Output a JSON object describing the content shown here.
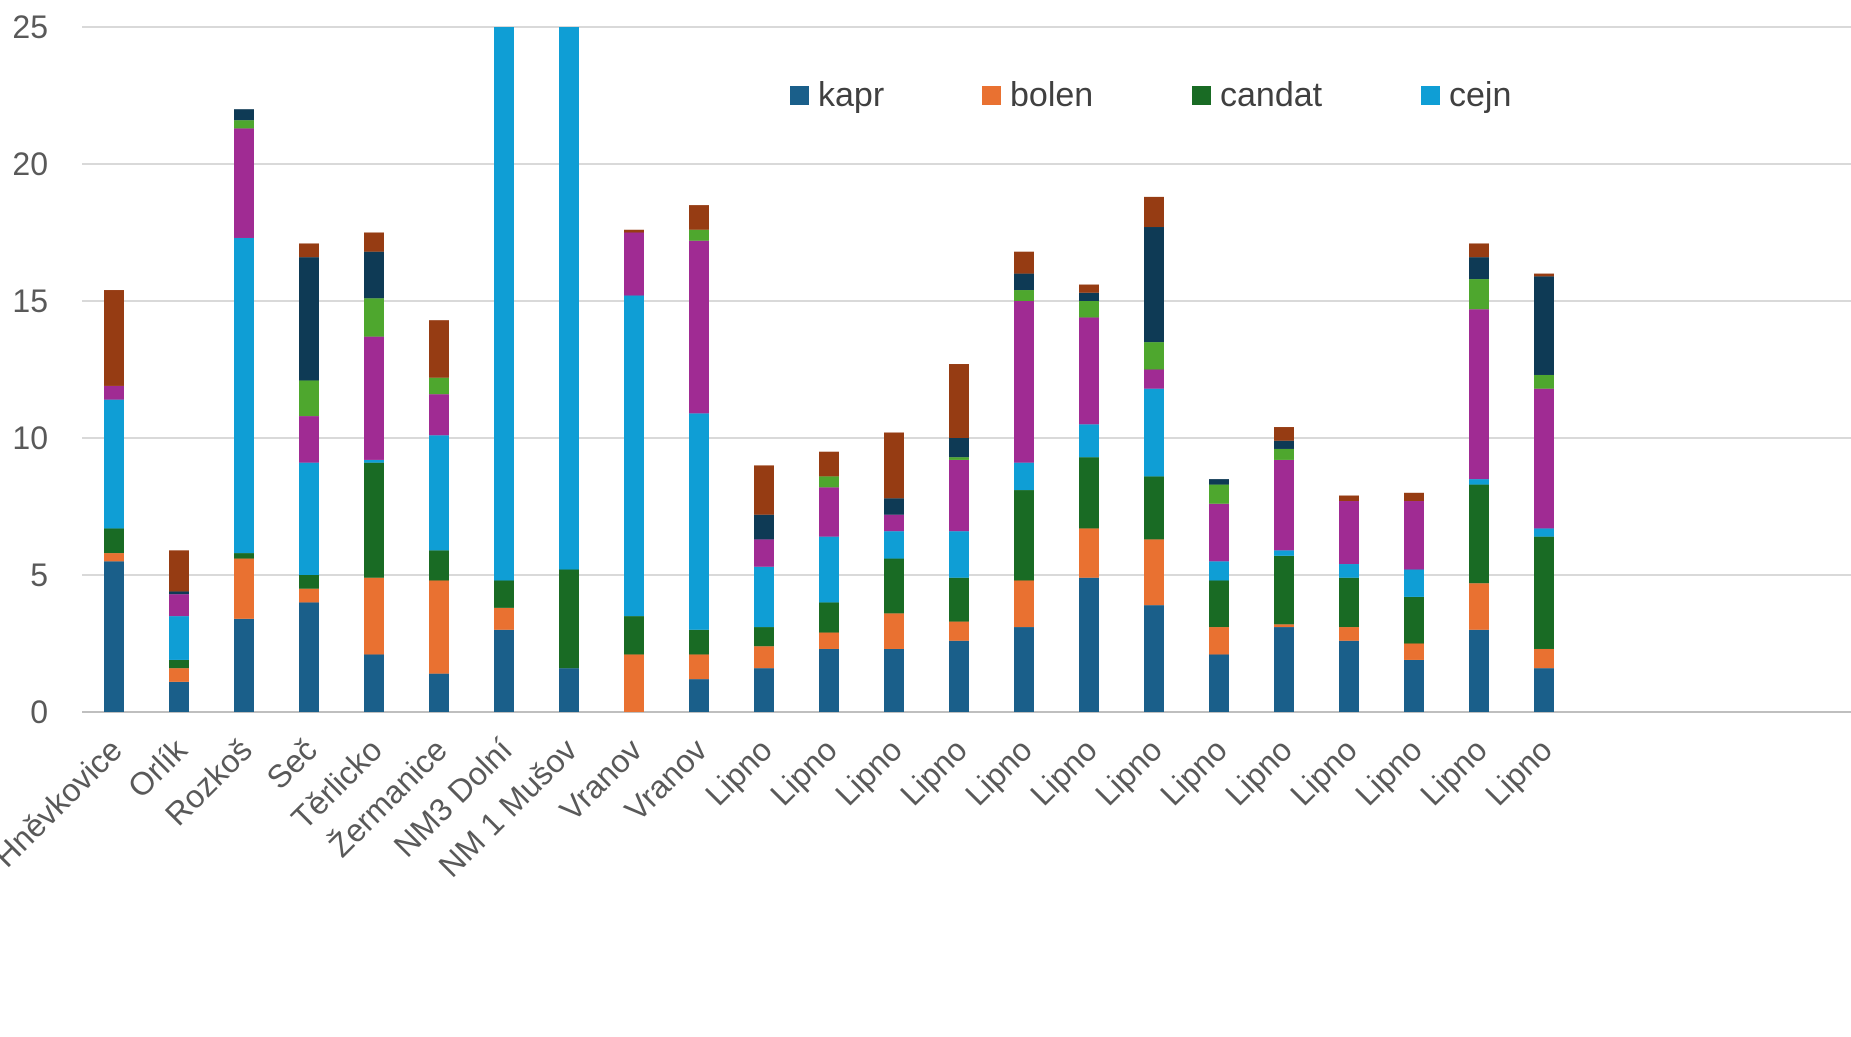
{
  "chart_data": {
    "type": "bar",
    "stacked": true,
    "ylim": [
      0,
      25
    ],
    "yticks": [
      0,
      5,
      10,
      15,
      20,
      25
    ],
    "grid": true,
    "legend_position": "top-right",
    "categories": [
      "Hněvkovice",
      "Orlík",
      "Rozkoš",
      "Seč",
      "Těrlicko",
      "Žermanice",
      "NM3 Dolní",
      "NM 1 Mušov",
      "Vranov",
      "Vranov",
      "Lipno",
      "Lipno",
      "Lipno",
      "Lipno",
      "Lipno",
      "Lipno",
      "Lipno",
      "Lipno",
      "Lipno",
      "Lipno",
      "Lipno",
      "Lipno",
      "Lipno"
    ],
    "series": [
      {
        "name": "kapr",
        "color": "#1a5f8a",
        "legend": true,
        "values": [
          5.5,
          1.1,
          3.4,
          4.0,
          2.1,
          1.4,
          3.0,
          1.6,
          0.0,
          1.2,
          1.6,
          2.3,
          2.3,
          2.6,
          3.1,
          4.9,
          3.9,
          2.1,
          3.1,
          2.6,
          1.9,
          3.0,
          1.6
        ]
      },
      {
        "name": "bolen",
        "color": "#e97131",
        "legend": true,
        "values": [
          0.3,
          0.5,
          2.2,
          0.5,
          2.8,
          3.4,
          0.8,
          0.0,
          2.1,
          0.9,
          0.8,
          0.6,
          1.3,
          0.7,
          1.7,
          1.8,
          2.4,
          1.0,
          0.1,
          0.5,
          0.6,
          1.7,
          0.7
        ]
      },
      {
        "name": "candat",
        "color": "#196b24",
        "legend": true,
        "values": [
          0.9,
          0.3,
          0.2,
          0.5,
          4.2,
          1.1,
          1.0,
          3.6,
          1.4,
          0.9,
          0.7,
          1.1,
          2.0,
          1.6,
          3.3,
          2.6,
          2.3,
          1.7,
          2.5,
          1.8,
          1.7,
          3.6,
          4.1
        ]
      },
      {
        "name": "cejn",
        "color": "#0f9ed5",
        "legend": true,
        "values": [
          4.7,
          1.6,
          11.5,
          4.1,
          0.1,
          4.2,
          20.2,
          19.8,
          11.7,
          7.9,
          2.2,
          2.4,
          1.0,
          1.7,
          1.0,
          1.2,
          3.2,
          0.7,
          0.2,
          0.5,
          1.0,
          0.2,
          0.3
        ]
      },
      {
        "name": "",
        "color": "#a02b93",
        "legend": false,
        "values": [
          0.5,
          0.8,
          4.0,
          1.7,
          4.5,
          1.5,
          0.0,
          0.0,
          2.3,
          6.3,
          1.0,
          1.8,
          0.6,
          2.6,
          5.9,
          3.9,
          0.7,
          2.1,
          3.3,
          2.3,
          2.5,
          6.2,
          5.1
        ]
      },
      {
        "name": "",
        "color": "#4ea72e",
        "legend": false,
        "values": [
          0.0,
          0.0,
          0.3,
          1.3,
          1.4,
          0.6,
          0.0,
          0.0,
          0.0,
          0.4,
          0.0,
          0.4,
          0.0,
          0.1,
          0.4,
          0.6,
          1.0,
          0.7,
          0.4,
          0.0,
          0.0,
          1.1,
          0.5
        ]
      },
      {
        "name": "",
        "color": "#0e3a55",
        "legend": false,
        "values": [
          0.0,
          0.1,
          0.4,
          4.5,
          1.7,
          0.0,
          0.0,
          0.0,
          0.0,
          0.0,
          0.9,
          0.0,
          0.6,
          0.7,
          0.6,
          0.3,
          4.2,
          0.2,
          0.3,
          0.0,
          0.0,
          0.8,
          3.6
        ]
      },
      {
        "name": "",
        "color": "#963c13",
        "legend": false,
        "values": [
          3.5,
          1.5,
          0.0,
          0.5,
          0.7,
          2.1,
          0.0,
          0.0,
          0.1,
          0.9,
          1.8,
          0.9,
          2.4,
          2.7,
          0.8,
          0.3,
          1.1,
          0.0,
          0.5,
          0.2,
          0.3,
          0.5,
          0.1
        ]
      }
    ]
  }
}
